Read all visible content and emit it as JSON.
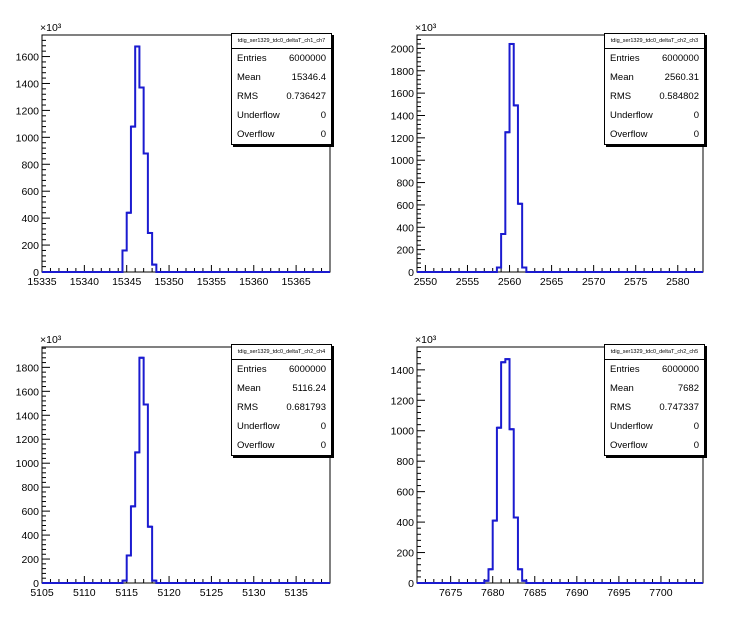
{
  "chart_data": [
    {
      "type": "histogram",
      "title": "tdig_ser1329_tdc0_deltaT_ch1_ch7",
      "exponent_label": "×10³",
      "xlim": [
        15335,
        15369
      ],
      "ylim": [
        0,
        1760
      ],
      "x_ticks": [
        15335,
        15340,
        15345,
        15350,
        15355,
        15360,
        15365
      ],
      "y_ticks": [
        0,
        200,
        400,
        600,
        800,
        1000,
        1200,
        1400,
        1600
      ],
      "bin_width": 0.5,
      "bins": [
        {
          "x": 15344.5,
          "y": 160
        },
        {
          "x": 15345.0,
          "y": 440
        },
        {
          "x": 15345.5,
          "y": 1080
        },
        {
          "x": 15346.0,
          "y": 1675
        },
        {
          "x": 15346.5,
          "y": 1370
        },
        {
          "x": 15347.0,
          "y": 880
        },
        {
          "x": 15347.5,
          "y": 290
        },
        {
          "x": 15348.0,
          "y": 55
        }
      ],
      "stats": {
        "entries": "6000000",
        "mean": "15346.4",
        "rms": "0.736427",
        "underflow": "0",
        "overflow": "0"
      }
    },
    {
      "type": "histogram",
      "title": "tdig_ser1329_tdc0_deltaT_ch2_ch3",
      "exponent_label": "×10³",
      "xlim": [
        2549,
        2583
      ],
      "ylim": [
        0,
        2120
      ],
      "x_ticks": [
        2550,
        2555,
        2560,
        2565,
        2570,
        2575,
        2580
      ],
      "y_ticks": [
        0,
        200,
        400,
        600,
        800,
        1000,
        1200,
        1400,
        1600,
        1800,
        2000
      ],
      "bin_width": 0.5,
      "bins": [
        {
          "x": 2558.5,
          "y": 40
        },
        {
          "x": 2559.0,
          "y": 340
        },
        {
          "x": 2559.5,
          "y": 1250
        },
        {
          "x": 2560.0,
          "y": 2040
        },
        {
          "x": 2560.5,
          "y": 1490
        },
        {
          "x": 2561.0,
          "y": 610
        },
        {
          "x": 2561.5,
          "y": 40
        }
      ],
      "stats": {
        "entries": "6000000",
        "mean": "2560.31",
        "rms": "0.584802",
        "underflow": "0",
        "overflow": "0"
      }
    },
    {
      "type": "histogram",
      "title": "tdig_ser1329_tdc0_deltaT_ch2_ch4",
      "exponent_label": "×10³",
      "xlim": [
        5105,
        5139
      ],
      "ylim": [
        0,
        1970
      ],
      "x_ticks": [
        5105,
        5110,
        5115,
        5120,
        5125,
        5130,
        5135
      ],
      "y_ticks": [
        0,
        200,
        400,
        600,
        800,
        1000,
        1200,
        1400,
        1600,
        1800
      ],
      "bin_width": 0.5,
      "bins": [
        {
          "x": 5114.5,
          "y": 20
        },
        {
          "x": 5115.0,
          "y": 230
        },
        {
          "x": 5115.5,
          "y": 640
        },
        {
          "x": 5116.0,
          "y": 1090
        },
        {
          "x": 5116.5,
          "y": 1880
        },
        {
          "x": 5117.0,
          "y": 1490
        },
        {
          "x": 5117.5,
          "y": 470
        },
        {
          "x": 5118.0,
          "y": 20
        }
      ],
      "stats": {
        "entries": "6000000",
        "mean": "5116.24",
        "rms": "0.681793",
        "underflow": "0",
        "overflow": "0"
      }
    },
    {
      "type": "histogram",
      "title": "tdig_ser1329_tdc0_deltaT_ch2_ch5",
      "exponent_label": "×10³",
      "xlim": [
        7671,
        7705
      ],
      "ylim": [
        0,
        1550
      ],
      "x_ticks": [
        7675,
        7680,
        7685,
        7690,
        7695,
        7700
      ],
      "y_ticks": [
        0,
        200,
        400,
        600,
        800,
        1000,
        1200,
        1400
      ],
      "bin_width": 0.5,
      "bins": [
        {
          "x": 7679.0,
          "y": 15
        },
        {
          "x": 7679.5,
          "y": 90
        },
        {
          "x": 7680.0,
          "y": 410
        },
        {
          "x": 7680.5,
          "y": 1020
        },
        {
          "x": 7681.0,
          "y": 1450
        },
        {
          "x": 7681.5,
          "y": 1470
        },
        {
          "x": 7682.0,
          "y": 1010
        },
        {
          "x": 7682.5,
          "y": 430
        },
        {
          "x": 7683.0,
          "y": 90
        },
        {
          "x": 7683.5,
          "y": 15
        }
      ],
      "stats": {
        "entries": "6000000",
        "mean": "7682",
        "rms": "0.747337",
        "underflow": "0",
        "overflow": "0"
      }
    }
  ],
  "stats_labels": {
    "entries": "Entries",
    "mean": "Mean",
    "rms": "RMS",
    "underflow": "Underflow",
    "overflow": "Overflow"
  },
  "colors": {
    "histogram_line": "#1b1bd0",
    "axis": "#000000",
    "background": "#ffffff"
  }
}
